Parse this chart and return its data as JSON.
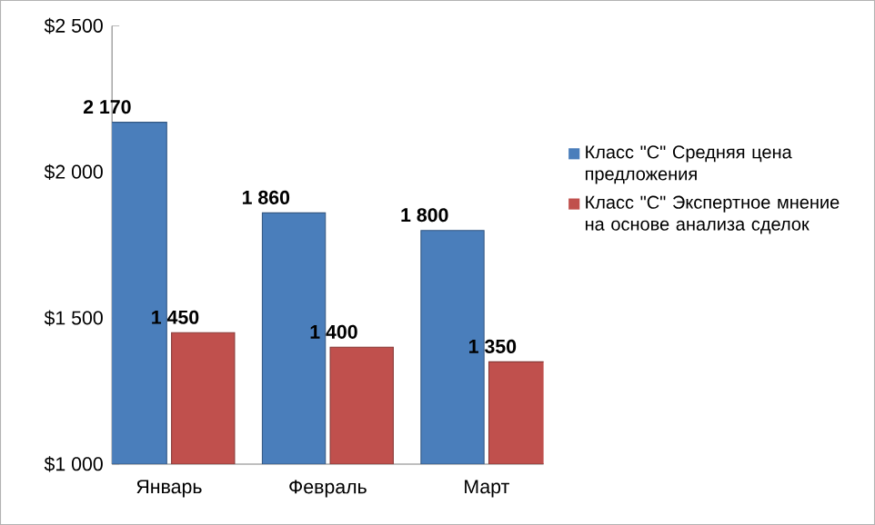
{
  "chart_data": {
    "type": "bar",
    "categories": [
      "Январь",
      "Февраль",
      "Март"
    ],
    "series": [
      {
        "name": "Класс \"С\" Средняя цена предложения",
        "color": "#4a7ebb",
        "values": [
          2170,
          1860,
          1800
        ],
        "value_labels": [
          "2 170",
          "1 860",
          "1 800"
        ]
      },
      {
        "name": "Класс \"С\" Экспертное мнение  на основе анализа сделок",
        "color": "#c0504d",
        "values": [
          1450,
          1400,
          1350
        ],
        "value_labels": [
          "1 450",
          "1 400",
          "1 350"
        ]
      }
    ],
    "ylim": [
      1000,
      2500
    ],
    "yticks": [
      {
        "value": 1000,
        "label": "$1 000"
      },
      {
        "value": 1500,
        "label": "$1 500"
      },
      {
        "value": 2000,
        "label": "$2 000"
      },
      {
        "value": 2500,
        "label": "$2 500"
      }
    ],
    "grid": false,
    "legend": "right"
  }
}
